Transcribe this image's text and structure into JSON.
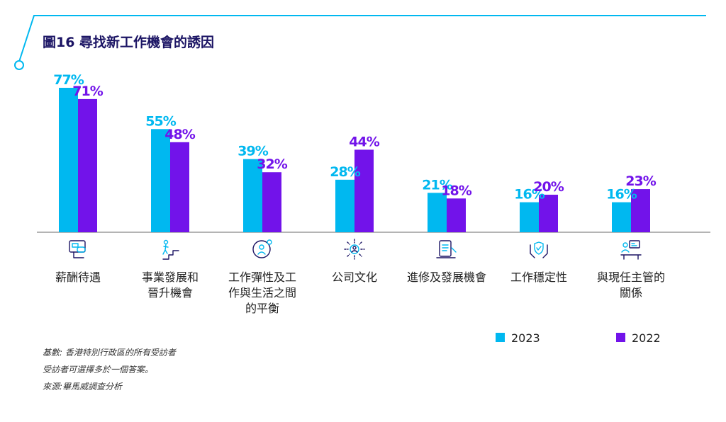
{
  "title": "圖16 尋找新工作機會的誘因",
  "legend": [
    {
      "label": "2023",
      "color": "#00b8f0"
    },
    {
      "label": "2022",
      "color": "#7213ea"
    }
  ],
  "notes": [
    "基數: 香港特別行政區的所有受訪者",
    "受訪者可選擇多於一個答案。",
    "來源:畢馬威調查分析"
  ],
  "chart_data": {
    "type": "bar",
    "title": "圖16 尋找新工作機會的誘因",
    "categories": [
      "薪酬待遇",
      "事業發展和晉升機會",
      "工作彈性及工作與生活之間的平衡",
      "公司文化",
      "進修及發展機會",
      "工作穩定性",
      "與現任主管的關係"
    ],
    "category_lines": [
      [
        "薪酬待遇"
      ],
      [
        "事業發展和",
        "晉升機會"
      ],
      [
        "工作彈性及工",
        "作與生活之間",
        "的平衡"
      ],
      [
        "公司文化"
      ],
      [
        "進修及發展機會"
      ],
      [
        "工作穩定性"
      ],
      [
        "與現任主管的",
        "關係"
      ]
    ],
    "category_icons": [
      "salary-icon",
      "career-stairs-icon",
      "work-life-balance-icon",
      "company-culture-icon",
      "training-documents-icon",
      "stability-hands-shield-icon",
      "manager-meeting-icon"
    ],
    "series": [
      {
        "name": "2023",
        "color": "#00b8f0",
        "values": [
          77,
          55,
          39,
          28,
          21,
          16,
          16
        ]
      },
      {
        "name": "2022",
        "color": "#7213ea",
        "values": [
          71,
          48,
          32,
          44,
          18,
          20,
          23
        ]
      }
    ],
    "value_suffix": "%",
    "ylim": [
      0,
      77
    ],
    "grid": false,
    "legend_position": "bottom-right"
  }
}
